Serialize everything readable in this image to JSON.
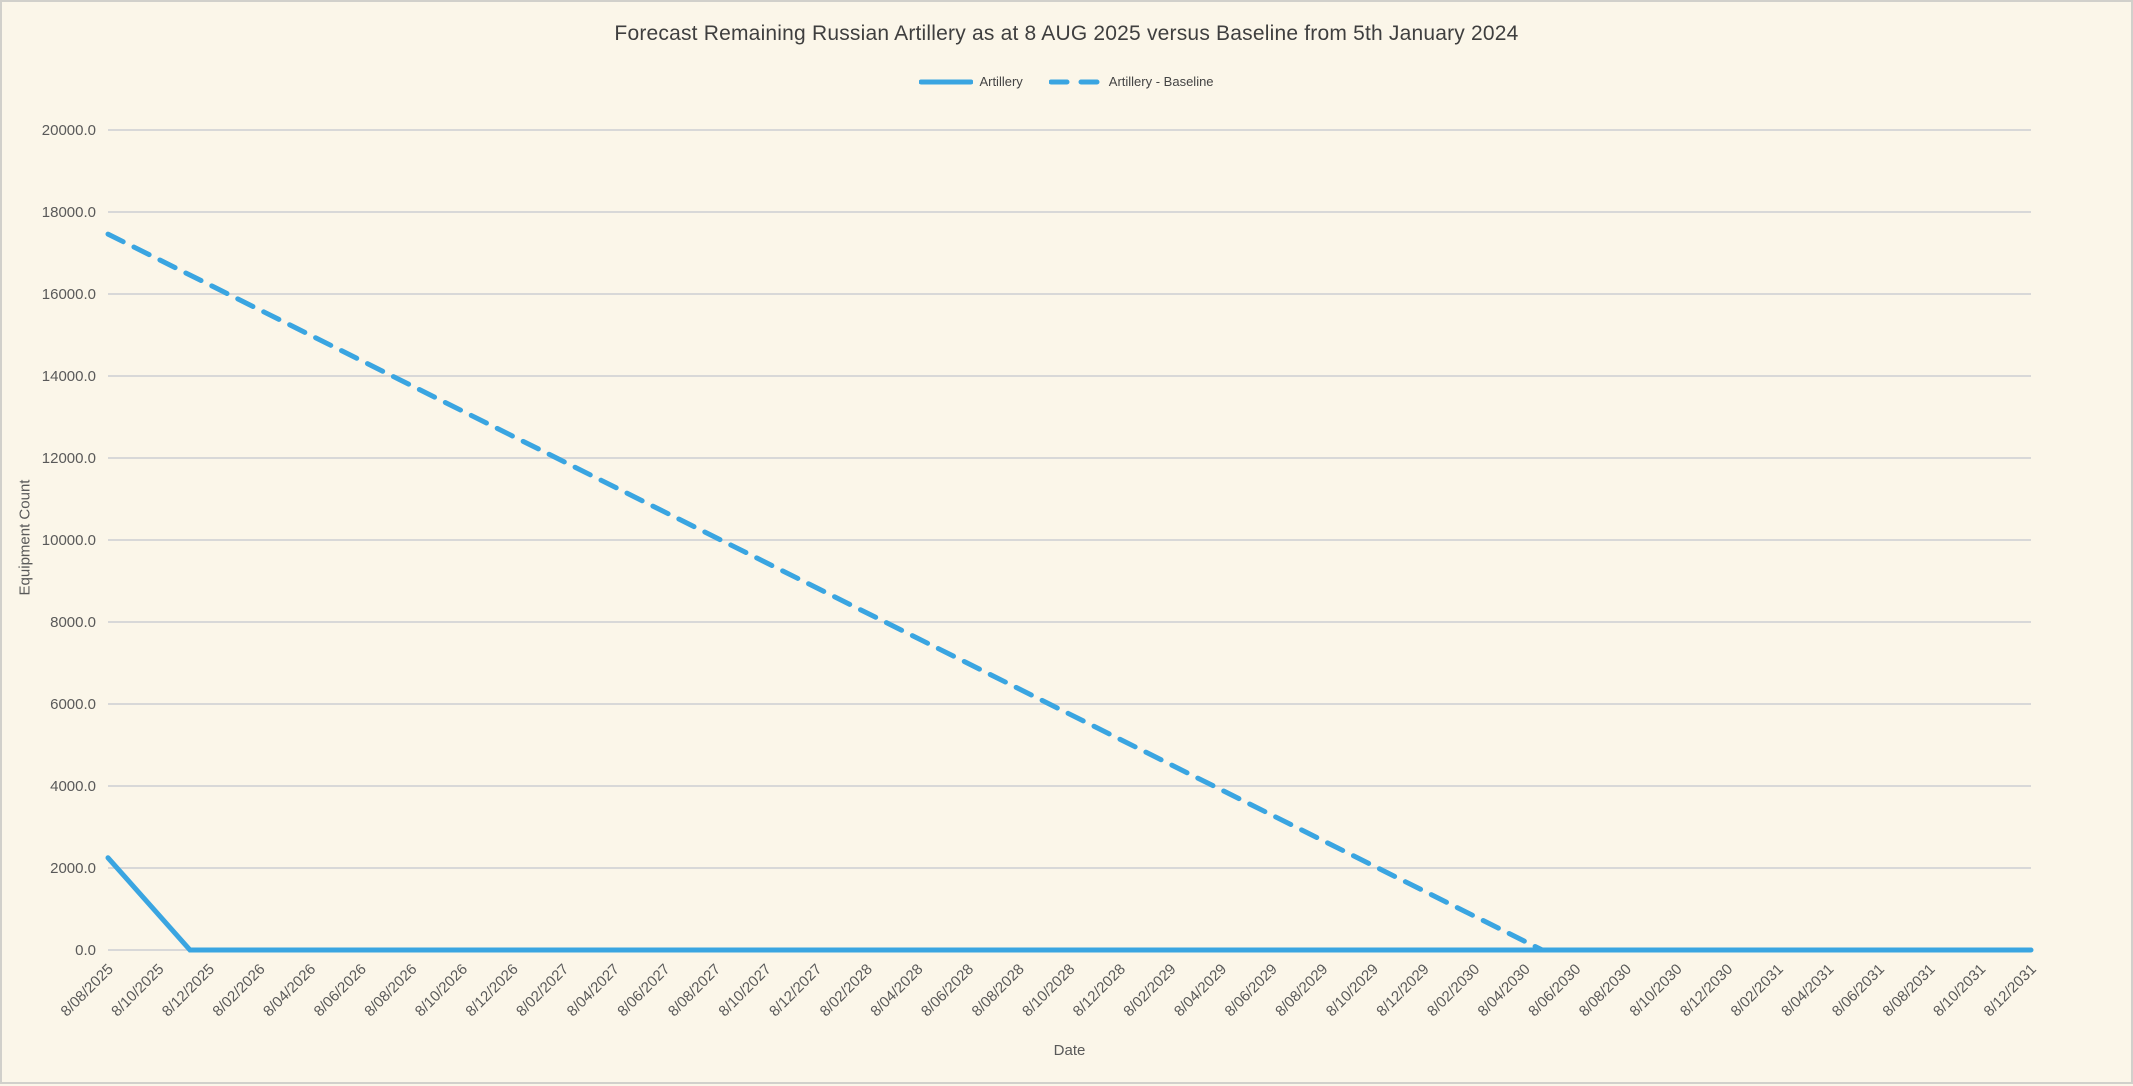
{
  "colors": {
    "accent_blue": "#3AA5E1",
    "background": "#FBF6E9",
    "gridline": "#D8D8D8",
    "title_text": "#3F3F3F",
    "axis_text": "#595959",
    "frame_border": "#D1D0CB"
  },
  "chart_data": {
    "type": "line",
    "title": "Forecast Remaining Russian Artillery as at 8 AUG 2025 versus Baseline from 5th January 2024",
    "xlabel": "Date",
    "ylabel": "Equipment Count",
    "ylim": [
      0,
      20000
    ],
    "ytick_step": 2000,
    "ytick_labels": [
      "0.0",
      "2000.0",
      "4000.0",
      "6000.0",
      "8000.0",
      "10000.0",
      "12000.0",
      "14000.0",
      "16000.0",
      "18000.0",
      "20000.0"
    ],
    "grid": "horizontal",
    "legend_position": "top-center",
    "categories": [
      "8/08/2025",
      "8/10/2025",
      "8/12/2025",
      "8/02/2026",
      "8/04/2026",
      "8/06/2026",
      "8/08/2026",
      "8/10/2026",
      "8/12/2026",
      "8/02/2027",
      "8/04/2027",
      "8/06/2027",
      "8/08/2027",
      "8/10/2027",
      "8/12/2027",
      "8/02/2028",
      "8/04/2028",
      "8/06/2028",
      "8/08/2028",
      "8/10/2028",
      "8/12/2028",
      "8/02/2029",
      "8/04/2029",
      "8/06/2029",
      "8/08/2029",
      "8/10/2029",
      "8/12/2029",
      "8/02/2030",
      "8/04/2030",
      "8/06/2030",
      "8/08/2030",
      "8/10/2030",
      "8/12/2030",
      "8/02/2031",
      "8/04/2031",
      "8/06/2031",
      "8/08/2031",
      "8/10/2031",
      "8/12/2031"
    ],
    "series": [
      {
        "name": "Artillery",
        "line_style": "solid",
        "color": "#3AA5E1",
        "values": [
          2250,
          880,
          0,
          0,
          0,
          0,
          0,
          0,
          0,
          0,
          0,
          0,
          0,
          0,
          0,
          0,
          0,
          0,
          0,
          0,
          0,
          0,
          0,
          0,
          0,
          0,
          0,
          0,
          0,
          0,
          0,
          0,
          0,
          0,
          0,
          0,
          0,
          0,
          0
        ],
        "draw_points": [
          [
            0,
            2250
          ],
          [
            1.62,
            0
          ],
          [
            38,
            0
          ]
        ]
      },
      {
        "name": "Artillery - Baseline",
        "line_style": "dashed",
        "color": "#3AA5E1",
        "values": [
          17460,
          16840,
          16230,
          15610,
          15000,
          14380,
          13770,
          13150,
          12530,
          11920,
          11300,
          10680,
          10070,
          9450,
          8840,
          8220,
          7600,
          6990,
          6370,
          5750,
          5140,
          4520,
          3910,
          3290,
          2670,
          2060,
          1440,
          820,
          210,
          null,
          null,
          null,
          null,
          null,
          null,
          null,
          null,
          null,
          null
        ],
        "draw_points": [
          [
            0,
            17460
          ],
          [
            28.34,
            0
          ]
        ]
      }
    ]
  }
}
